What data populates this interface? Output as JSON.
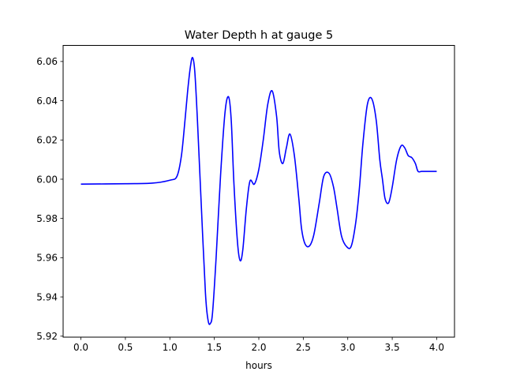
{
  "chart_data": {
    "type": "line",
    "title": "Water Depth h at gauge 5",
    "xlabel": "hours",
    "ylabel": "",
    "xlim": [
      -0.2,
      4.2
    ],
    "ylim": [
      5.9195,
      6.0682
    ],
    "xticks": [
      0.0,
      0.5,
      1.0,
      1.5,
      2.0,
      2.5,
      3.0,
      3.5,
      4.0
    ],
    "xtick_labels": [
      "0.0",
      "0.5",
      "1.0",
      "1.5",
      "2.0",
      "2.5",
      "3.0",
      "3.5",
      "4.0"
    ],
    "yticks": [
      5.92,
      5.94,
      5.96,
      5.98,
      6.0,
      6.02,
      6.04,
      6.06
    ],
    "ytick_labels": [
      "5.92",
      "5.94",
      "5.96",
      "5.98",
      "6.00",
      "6.02",
      "6.04",
      "6.06"
    ],
    "grid": false,
    "series": [
      {
        "color": "#0000ff",
        "x": [
          0.0,
          0.5,
          0.8,
          1.0,
          1.08,
          1.13,
          1.17,
          1.2,
          1.23,
          1.255,
          1.28,
          1.31,
          1.35,
          1.4,
          1.43,
          1.455,
          1.48,
          1.52,
          1.57,
          1.62,
          1.66,
          1.69,
          1.72,
          1.76,
          1.79,
          1.82,
          1.86,
          1.9,
          1.95,
          2.0,
          2.05,
          2.1,
          2.15,
          2.2,
          2.23,
          2.27,
          2.31,
          2.35,
          2.4,
          2.45,
          2.48,
          2.52,
          2.57,
          2.62,
          2.68,
          2.73,
          2.79,
          2.84,
          2.88,
          2.93,
          2.99,
          3.04,
          3.09,
          3.13,
          3.17,
          3.22,
          3.27,
          3.32,
          3.36,
          3.39,
          3.42,
          3.46,
          3.5,
          3.55,
          3.6,
          3.64,
          3.68,
          3.72,
          3.76,
          3.79,
          3.83,
          3.87,
          3.92,
          3.97,
          4.0
        ],
        "y": [
          5.9975,
          5.9977,
          5.998,
          5.9995,
          6.0015,
          6.012,
          6.03,
          6.045,
          6.057,
          6.062,
          6.055,
          6.03,
          5.99,
          5.942,
          5.928,
          5.9265,
          5.932,
          5.96,
          6.002,
          6.034,
          6.042,
          6.03,
          5.998,
          5.968,
          5.9585,
          5.964,
          5.985,
          5.999,
          5.9975,
          6.005,
          6.02,
          6.038,
          6.045,
          6.032,
          6.014,
          6.008,
          6.016,
          6.023,
          6.012,
          5.99,
          5.975,
          5.967,
          5.966,
          5.972,
          5.988,
          6.0015,
          6.003,
          5.996,
          5.985,
          5.971,
          5.9655,
          5.966,
          5.978,
          5.995,
          6.018,
          6.038,
          6.041,
          6.03,
          6.01,
          6.0,
          5.99,
          5.988,
          5.996,
          6.01,
          6.017,
          6.016,
          6.012,
          6.011,
          6.008,
          6.004,
          6.004,
          6.004,
          6.004,
          6.004,
          6.004
        ]
      }
    ]
  }
}
